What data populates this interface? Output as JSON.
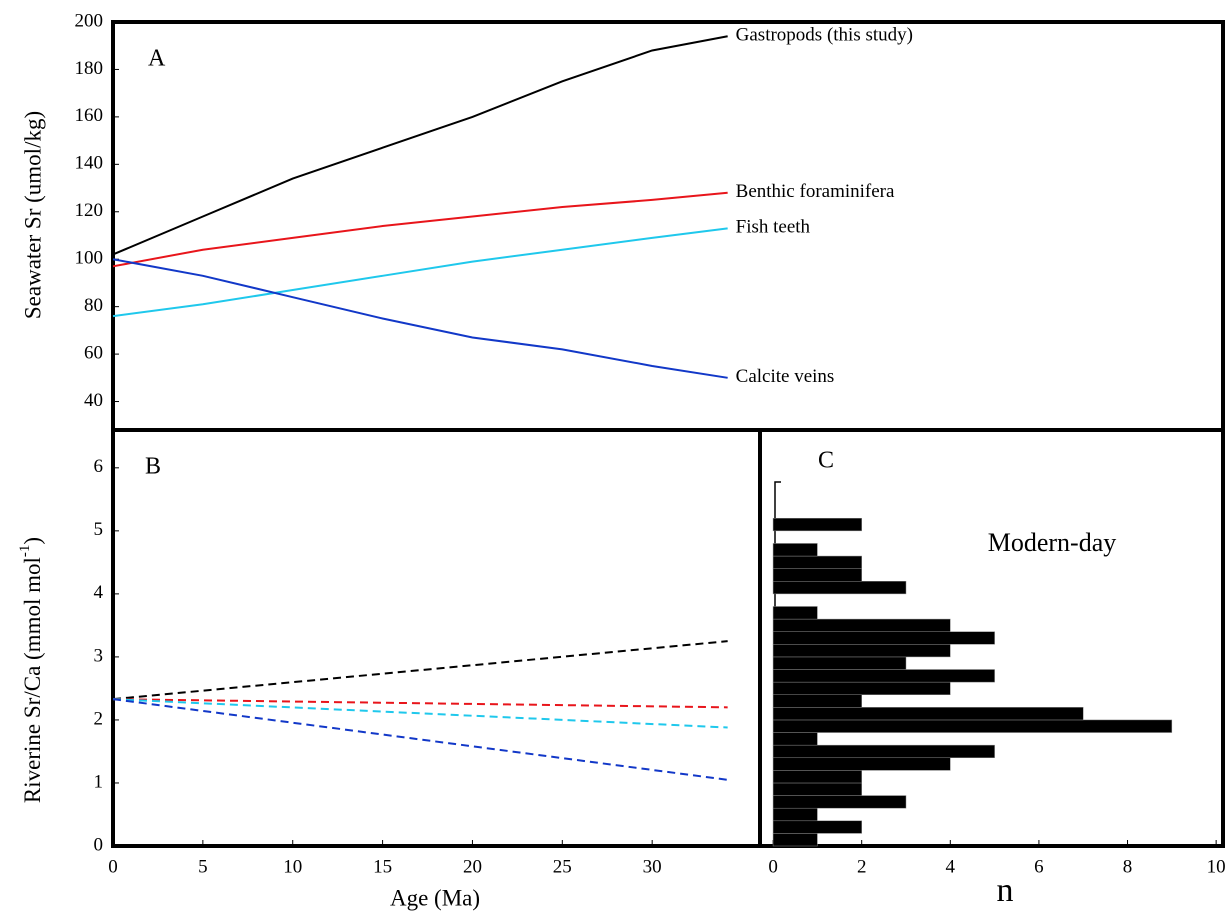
{
  "chart_data": [
    {
      "type": "line",
      "panel": "A",
      "ylabel": "Seawater Sr (umol/kg)",
      "x": [
        0,
        5,
        10,
        15,
        20,
        25,
        30,
        34.2
      ],
      "xlim": [
        0,
        36
      ],
      "ylim": [
        28,
        200
      ],
      "yticks": [
        40,
        60,
        80,
        100,
        120,
        140,
        160,
        180,
        200
      ],
      "series": [
        {
          "name": "Gastropods (this study)",
          "color": "#000000",
          "values": [
            102,
            118,
            134,
            147,
            160,
            175,
            188,
            194
          ]
        },
        {
          "name": "Benthic foraminifera",
          "color": "#e8151b",
          "values": [
            97,
            104,
            109,
            114,
            118,
            122,
            125,
            128
          ]
        },
        {
          "name": "Fish teeth",
          "color": "#1fc8ec",
          "values": [
            76,
            81,
            87,
            93,
            99,
            104,
            109,
            113
          ]
        },
        {
          "name": "Calcite veins",
          "color": "#1238c8",
          "values": [
            100,
            93,
            84,
            75,
            67,
            62,
            55,
            50
          ]
        }
      ]
    },
    {
      "type": "line",
      "panel": "B",
      "linestyle": "dashed",
      "ylabel": {
        "text": "Riverine Sr/Ca  (mmol mol",
        "superscript": "-1",
        "suffix": ")"
      },
      "xlabel": "Age (Ma)",
      "x": [
        0,
        34.2
      ],
      "xlim": [
        0,
        36
      ],
      "xticks": [
        0,
        5,
        10,
        15,
        20,
        25,
        30
      ],
      "ylim": [
        0,
        6.6
      ],
      "yticks": [
        0,
        1,
        2,
        3,
        4,
        5,
        6
      ],
      "series": [
        {
          "color": "#000000",
          "values": [
            2.33,
            3.25
          ]
        },
        {
          "color": "#e8151b",
          "values": [
            2.33,
            2.2
          ]
        },
        {
          "color": "#1fc8ec",
          "values": [
            2.33,
            1.88
          ]
        },
        {
          "color": "#1238c8",
          "values": [
            2.33,
            1.05
          ]
        }
      ]
    },
    {
      "type": "histogram",
      "panel": "C",
      "orientation": "horizontal",
      "xlabel": "n",
      "annotation": "Modern-day",
      "color": "#000000",
      "bins": [
        0,
        0.2,
        0.4,
        0.6,
        0.8,
        1,
        1.2,
        1.4,
        1.6,
        1.8,
        2,
        2.2,
        2.4,
        2.6,
        2.8,
        3,
        3.2,
        3.4,
        3.6,
        3.8,
        4,
        4.2,
        4.4,
        4.6,
        4.8,
        5,
        5.2
      ],
      "values": [
        1,
        2,
        1,
        3,
        2,
        2,
        4,
        5,
        1,
        9,
        7,
        2,
        4,
        5,
        3,
        4,
        5,
        4,
        1,
        0,
        3,
        2,
        2,
        1,
        0,
        2
      ],
      "xlim": [
        -0.25,
        10.2
      ],
      "xticks": [
        0,
        2,
        4,
        6,
        8,
        10
      ],
      "ylim": [
        0,
        6.6
      ]
    }
  ]
}
